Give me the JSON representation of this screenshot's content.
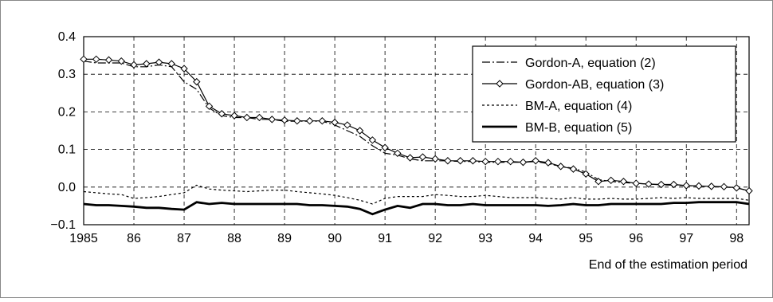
{
  "chart_data": {
    "type": "line",
    "title": "",
    "xlabel": "End of the estimation period",
    "ylabel": "",
    "xlim": [
      1985,
      1998.25
    ],
    "ylim": [
      -0.1,
      0.4
    ],
    "x_tick_values": [
      1985,
      1986,
      1987,
      1988,
      1989,
      1990,
      1991,
      1992,
      1993,
      1994,
      1995,
      1996,
      1997,
      1998
    ],
    "x_tick_labels": [
      "1985",
      "86",
      "87",
      "88",
      "89",
      "90",
      "91",
      "92",
      "93",
      "94",
      "95",
      "96",
      "97",
      "98"
    ],
    "y_tick_values": [
      -0.1,
      0.0,
      0.1,
      0.2,
      0.3,
      0.4
    ],
    "y_tick_labels": [
      "−0.1",
      "0.0",
      "0.1",
      "0.2",
      "0.3",
      "0.4"
    ],
    "grid": true,
    "legend_position": "top-right",
    "x": [
      1985.0,
      1985.25,
      1985.5,
      1985.75,
      1986.0,
      1986.25,
      1986.5,
      1986.75,
      1987.0,
      1987.25,
      1987.5,
      1987.75,
      1988.0,
      1988.25,
      1988.5,
      1988.75,
      1989.0,
      1989.25,
      1989.5,
      1989.75,
      1990.0,
      1990.25,
      1990.5,
      1990.75,
      1991.0,
      1991.25,
      1991.5,
      1991.75,
      1992.0,
      1992.25,
      1992.5,
      1992.75,
      1993.0,
      1993.25,
      1993.5,
      1993.75,
      1994.0,
      1994.25,
      1994.5,
      1994.75,
      1995.0,
      1995.25,
      1995.5,
      1995.75,
      1996.0,
      1996.25,
      1996.5,
      1996.75,
      1997.0,
      1997.25,
      1997.5,
      1997.75,
      1998.0,
      1998.25
    ],
    "series": [
      {
        "name": "Gordon-A, equation (2)",
        "style": "dashdot",
        "values": [
          0.335,
          0.33,
          0.33,
          0.33,
          0.32,
          0.32,
          0.325,
          0.32,
          0.28,
          0.26,
          0.21,
          0.19,
          0.185,
          0.185,
          0.18,
          0.18,
          0.175,
          0.175,
          0.175,
          0.175,
          0.165,
          0.15,
          0.135,
          0.11,
          0.09,
          0.085,
          0.075,
          0.07,
          0.07,
          0.07,
          0.068,
          0.068,
          0.066,
          0.066,
          0.066,
          0.066,
          0.068,
          0.062,
          0.055,
          0.05,
          0.04,
          0.02,
          0.015,
          0.012,
          0.01,
          0.008,
          0.006,
          0.005,
          0.004,
          0.003,
          0.002,
          0.0,
          -0.002,
          -0.01
        ]
      },
      {
        "name": "Gordon-AB, equation (3)",
        "style": "diamond",
        "values": [
          0.34,
          0.34,
          0.338,
          0.335,
          0.325,
          0.328,
          0.332,
          0.328,
          0.315,
          0.28,
          0.215,
          0.195,
          0.19,
          0.185,
          0.185,
          0.18,
          0.178,
          0.176,
          0.176,
          0.176,
          0.172,
          0.165,
          0.15,
          0.125,
          0.105,
          0.09,
          0.078,
          0.08,
          0.075,
          0.07,
          0.07,
          0.07,
          0.068,
          0.068,
          0.068,
          0.066,
          0.07,
          0.065,
          0.055,
          0.048,
          0.035,
          0.015,
          0.018,
          0.015,
          0.01,
          0.008,
          0.007,
          0.007,
          0.004,
          0.003,
          0.002,
          0.001,
          -0.002,
          -0.01
        ]
      },
      {
        "name": "BM-A, equation (4)",
        "style": "dotted",
        "values": [
          -0.012,
          -0.015,
          -0.018,
          -0.02,
          -0.03,
          -0.028,
          -0.025,
          -0.02,
          -0.015,
          0.005,
          -0.005,
          -0.008,
          -0.01,
          -0.012,
          -0.01,
          -0.008,
          -0.008,
          -0.012,
          -0.015,
          -0.018,
          -0.022,
          -0.028,
          -0.035,
          -0.045,
          -0.03,
          -0.025,
          -0.025,
          -0.025,
          -0.02,
          -0.022,
          -0.025,
          -0.025,
          -0.022,
          -0.025,
          -0.028,
          -0.028,
          -0.028,
          -0.03,
          -0.032,
          -0.028,
          -0.032,
          -0.032,
          -0.03,
          -0.032,
          -0.032,
          -0.03,
          -0.028,
          -0.03,
          -0.028,
          -0.03,
          -0.03,
          -0.03,
          -0.03,
          -0.035
        ]
      },
      {
        "name": "BM-B, equation (5)",
        "style": "solid-thick",
        "values": [
          -0.045,
          -0.048,
          -0.048,
          -0.05,
          -0.052,
          -0.055,
          -0.055,
          -0.058,
          -0.06,
          -0.04,
          -0.045,
          -0.042,
          -0.045,
          -0.045,
          -0.045,
          -0.045,
          -0.045,
          -0.045,
          -0.048,
          -0.048,
          -0.05,
          -0.052,
          -0.058,
          -0.072,
          -0.06,
          -0.05,
          -0.055,
          -0.045,
          -0.045,
          -0.048,
          -0.048,
          -0.045,
          -0.048,
          -0.048,
          -0.048,
          -0.048,
          -0.048,
          -0.05,
          -0.048,
          -0.045,
          -0.048,
          -0.048,
          -0.045,
          -0.045,
          -0.045,
          -0.045,
          -0.045,
          -0.042,
          -0.042,
          -0.04,
          -0.04,
          -0.04,
          -0.04,
          -0.045
        ]
      }
    ]
  }
}
